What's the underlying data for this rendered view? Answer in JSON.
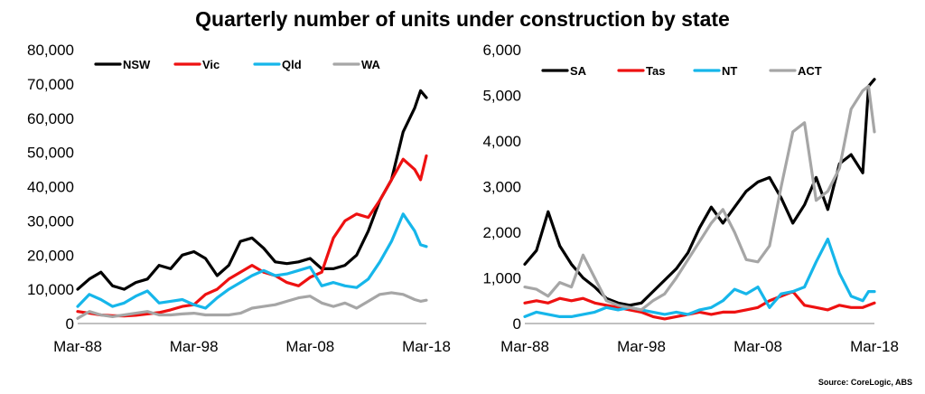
{
  "title": "Quarterly number of units under construction by state",
  "source": "Source: CoreLogic, ABS",
  "chart_data": [
    {
      "type": "line",
      "ylim": [
        0,
        80000
      ],
      "xlim": [
        1988,
        2018
      ],
      "yticks": [
        "0",
        "10,000",
        "20,000",
        "30,000",
        "40,000",
        "50,000",
        "60,000",
        "70,000",
        "80,000"
      ],
      "xticks": [
        {
          "label": "Mar-88",
          "value": 1988
        },
        {
          "label": "Mar-98",
          "value": 1998
        },
        {
          "label": "Mar-08",
          "value": 2008
        },
        {
          "label": "Mar-18",
          "value": 2018
        }
      ],
      "legend": "top-left",
      "series": [
        {
          "name": "NSW",
          "color": "#000000",
          "x": [
            1988,
            1989,
            1990,
            1991,
            1992,
            1993,
            1994,
            1995,
            1996,
            1997,
            1998,
            1999,
            2000,
            2001,
            2002,
            2003,
            2004,
            2005,
            2006,
            2007,
            2008,
            2009,
            2010,
            2011,
            2012,
            2013,
            2014,
            2015,
            2016,
            2017,
            2017.5,
            2018
          ],
          "values": [
            10000,
            13000,
            15000,
            11000,
            10000,
            12000,
            13000,
            17000,
            16000,
            20000,
            21000,
            19000,
            14000,
            17000,
            24000,
            25000,
            22000,
            18000,
            17500,
            18000,
            19000,
            16000,
            16000,
            17000,
            20000,
            27000,
            36000,
            42000,
            56000,
            63000,
            68000,
            66000
          ]
        },
        {
          "name": "Vic",
          "color": "#ee1111",
          "x": [
            1988,
            1989,
            1990,
            1991,
            1992,
            1993,
            1994,
            1995,
            1996,
            1997,
            1998,
            1999,
            2000,
            2001,
            2002,
            2003,
            2004,
            2005,
            2006,
            2007,
            2008,
            2009,
            2010,
            2011,
            2012,
            2013,
            2014,
            2015,
            2016,
            2017,
            2017.5,
            2018
          ],
          "values": [
            3500,
            3000,
            2500,
            2300,
            2200,
            2400,
            2800,
            3200,
            4000,
            5000,
            5500,
            8500,
            10000,
            13000,
            15000,
            17000,
            15000,
            14000,
            12000,
            11000,
            13500,
            15000,
            25000,
            30000,
            32000,
            31000,
            36000,
            42000,
            48000,
            45000,
            42000,
            49000
          ]
        },
        {
          "name": "Qld",
          "color": "#16b6ea",
          "x": [
            1988,
            1989,
            1990,
            1991,
            1992,
            1993,
            1994,
            1995,
            1996,
            1997,
            1998,
            1999,
            2000,
            2001,
            2002,
            2003,
            2004,
            2005,
            2006,
            2007,
            2008,
            2009,
            2010,
            2011,
            2012,
            2013,
            2014,
            2015,
            2016,
            2017,
            2017.5,
            2018
          ],
          "values": [
            5000,
            8500,
            7000,
            5000,
            6000,
            8000,
            9500,
            6000,
            6500,
            7000,
            5500,
            4500,
            7500,
            10000,
            12000,
            14000,
            15500,
            14000,
            14500,
            15500,
            16500,
            11000,
            12000,
            11000,
            10500,
            13000,
            18000,
            24000,
            32000,
            27000,
            23000,
            22500
          ]
        },
        {
          "name": "WA",
          "color": "#a6a6a6",
          "x": [
            1988,
            1989,
            1990,
            1991,
            1992,
            1993,
            1994,
            1995,
            1996,
            1997,
            1998,
            1999,
            2000,
            2001,
            2002,
            2003,
            2004,
            2005,
            2006,
            2007,
            2008,
            2009,
            2010,
            2011,
            2012,
            2013,
            2014,
            2015,
            2016,
            2017,
            2017.5,
            2018
          ],
          "values": [
            1500,
            3500,
            2500,
            2000,
            2500,
            3000,
            3500,
            2500,
            2500,
            2800,
            3000,
            2500,
            2500,
            2500,
            3000,
            4500,
            5000,
            5500,
            6500,
            7500,
            8000,
            6000,
            5000,
            6000,
            4500,
            6500,
            8500,
            9000,
            8500,
            7000,
            6500,
            6800
          ]
        }
      ]
    },
    {
      "type": "line",
      "ylim": [
        0,
        6000
      ],
      "xlim": [
        1988,
        2018
      ],
      "yticks": [
        "0",
        "1,000",
        "2,000",
        "3,000",
        "4,000",
        "5,000",
        "6,000"
      ],
      "xticks": [
        {
          "label": "Mar-88",
          "value": 1988
        },
        {
          "label": "Mar-98",
          "value": 1998
        },
        {
          "label": "Mar-08",
          "value": 2008
        },
        {
          "label": "Mar-18",
          "value": 2018
        }
      ],
      "legend": "top-left",
      "series": [
        {
          "name": "SA",
          "color": "#000000",
          "x": [
            1988,
            1989,
            1990,
            1991,
            1992,
            1993,
            1994,
            1995,
            1996,
            1997,
            1998,
            1999,
            2000,
            2001,
            2002,
            2003,
            2004,
            2005,
            2006,
            2007,
            2008,
            2009,
            2010,
            2011,
            2012,
            2013,
            2014,
            2015,
            2016,
            2017,
            2017.5,
            2018
          ],
          "values": [
            1300,
            1600,
            2450,
            1700,
            1300,
            1000,
            800,
            550,
            450,
            400,
            450,
            700,
            950,
            1200,
            1550,
            2100,
            2550,
            2200,
            2550,
            2900,
            3100,
            3200,
            2750,
            2200,
            2600,
            3200,
            2500,
            3500,
            3700,
            3300,
            5200,
            5350
          ]
        },
        {
          "name": "Tas",
          "color": "#ee1111",
          "x": [
            1988,
            1989,
            1990,
            1991,
            1992,
            1993,
            1994,
            1995,
            1996,
            1997,
            1998,
            1999,
            2000,
            2001,
            2002,
            2003,
            2004,
            2005,
            2006,
            2007,
            2008,
            2009,
            2010,
            2011,
            2012,
            2013,
            2014,
            2015,
            2016,
            2017,
            2017.5,
            2018
          ],
          "values": [
            450,
            500,
            450,
            550,
            500,
            550,
            450,
            400,
            350,
            300,
            250,
            150,
            100,
            150,
            200,
            250,
            200,
            250,
            250,
            300,
            350,
            500,
            600,
            700,
            400,
            350,
            300,
            400,
            350,
            350,
            400,
            450
          ]
        },
        {
          "name": "NT",
          "color": "#16b6ea",
          "x": [
            1988,
            1989,
            1990,
            1991,
            1992,
            1993,
            1994,
            1995,
            1996,
            1997,
            1998,
            1999,
            2000,
            2001,
            2002,
            2003,
            2004,
            2005,
            2006,
            2007,
            2008,
            2009,
            2010,
            2011,
            2012,
            2013,
            2014,
            2015,
            2016,
            2017,
            2017.5,
            2018
          ],
          "values": [
            150,
            250,
            200,
            150,
            150,
            200,
            250,
            350,
            300,
            350,
            300,
            250,
            200,
            250,
            200,
            300,
            350,
            500,
            750,
            650,
            800,
            350,
            650,
            700,
            800,
            1350,
            1850,
            1100,
            600,
            500,
            700,
            700
          ]
        },
        {
          "name": "ACT",
          "color": "#a6a6a6",
          "x": [
            1988,
            1989,
            1990,
            1991,
            1992,
            1993,
            1994,
            1995,
            1996,
            1997,
            1998,
            1999,
            2000,
            2001,
            2002,
            2003,
            2004,
            2005,
            2006,
            2007,
            2008,
            2009,
            2010,
            2011,
            2012,
            2013,
            2014,
            2015,
            2016,
            2017,
            2017.5,
            2018
          ],
          "values": [
            800,
            750,
            600,
            900,
            800,
            1500,
            1000,
            500,
            400,
            350,
            300,
            500,
            650,
            1000,
            1400,
            1800,
            2200,
            2500,
            2000,
            1400,
            1350,
            1700,
            3000,
            4200,
            4400,
            2700,
            2900,
            3400,
            4700,
            5100,
            5200,
            4200
          ]
        }
      ]
    }
  ]
}
